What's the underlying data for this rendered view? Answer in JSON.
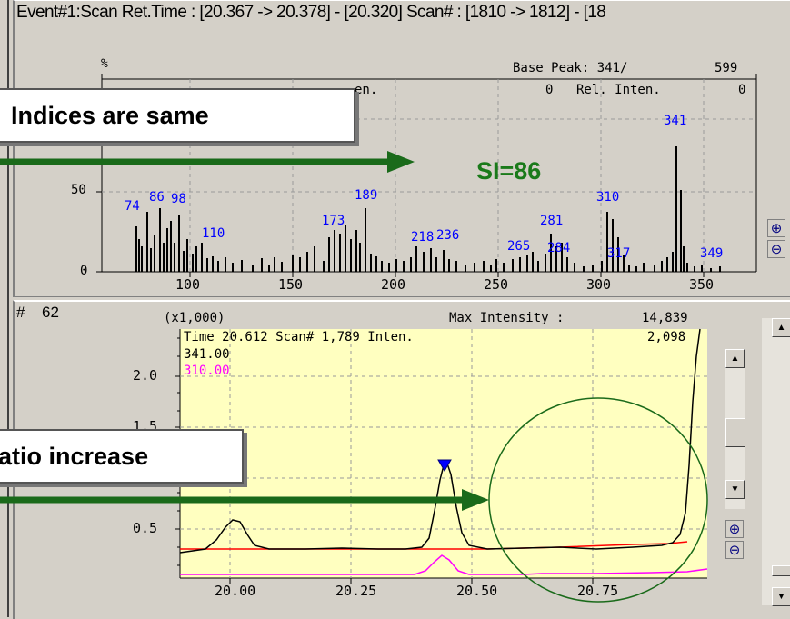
{
  "top": {
    "header": "Event#1:Scan   Ret.Time : [20.367 -> 20.378] - [20.320]   Scan# : [1810 -> 1812] - [18",
    "percent_label": "%",
    "base_peak_label": "Base Peak: 341/",
    "base_peak_value": "599",
    "rel_inten_frag": "en.",
    "rel_inten_zero": "0",
    "rel_inten_label": "Rel. Inten.",
    "rel_inten_tail": "0",
    "y_tick_50": "50",
    "y_tick_0": "0",
    "x_ticks": [
      "100",
      "150",
      "200",
      "250",
      "300",
      "350"
    ],
    "peak_labels": [
      "74",
      "86",
      "98",
      "110",
      "173",
      "189",
      "218",
      "236",
      "265",
      "281",
      "284",
      "310",
      "317",
      "341",
      "349"
    ],
    "si_label": "SI=86",
    "callout": "Indices are same",
    "zoom_in_icon": "zoom-in-icon",
    "zoom_out_icon": "zoom-out-icon",
    "colors": {
      "peak_label": "#0000ff",
      "si": "#1a7a1a",
      "arrow": "#1a6a1a"
    }
  },
  "bottom": {
    "hash_label": "#",
    "hash_value": "62",
    "multiplier": "(x1,000)",
    "max_intensity_label": "Max Intensity :",
    "max_intensity_value": "14,839",
    "y_ticks": [
      "2.0",
      "1.5",
      "0.5"
    ],
    "info_line": "Time 20.612   Scan# 1,789   Inten.",
    "info_value": "2,098",
    "trace_341": "341.00",
    "trace_310": "310.00",
    "x_ticks": [
      "20.00",
      "20.25",
      "20.50",
      "20.75"
    ],
    "callout": "atio increase",
    "colors": {
      "plot_bg": "#ffffc0",
      "trace_341": "#000000",
      "trace_310": "#ff00ff",
      "baseline": "#ff0000",
      "circle": "#1a6a1a"
    }
  }
}
